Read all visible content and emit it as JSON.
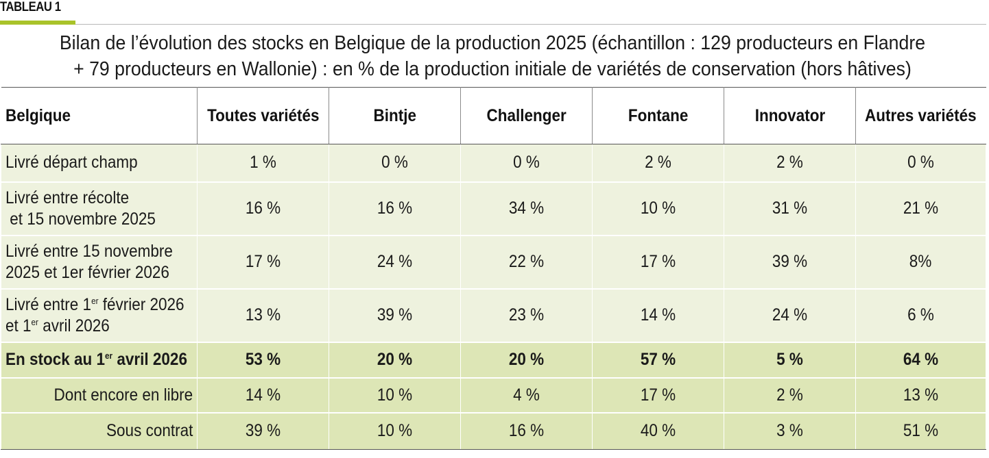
{
  "tag": "TABLEAU 1",
  "title": {
    "line1": "Bilan de l’évolution des stocks en Belgique de la production 2025 (échantillon : 129 producteurs en Flandre",
    "line2": "+ 79 producteurs en Wallonie) : en % de la production initiale de variétés de conservation (hors hâtives)"
  },
  "columns": [
    "Belgique",
    "Toutes variétés",
    "Bintje",
    "Challenger",
    "Fontane",
    "Innovator",
    "Autres variétés"
  ],
  "rows": [
    {
      "label": {
        "l1": "Livré départ champ"
      },
      "values": [
        "1 %",
        "0 %",
        "0 %",
        "2 %",
        "2 %",
        "0 %"
      ]
    },
    {
      "label": {
        "l1": "Livré entre récolte",
        "l2": " et 15 novembre 2025"
      },
      "values": [
        "16 %",
        "16 %",
        "34 %",
        "10 %",
        "31 %",
        "21 %"
      ]
    },
    {
      "label": {
        "l1": "Livré entre 15 novembre",
        "l2": "2025 et 1er février 2026"
      },
      "values": [
        "17 %",
        "24 %",
        "22 %",
        "17 %",
        "39 %",
        "8%"
      ]
    },
    {
      "label": {
        "l1a": "Livré entre 1",
        "l1sup": "er",
        "l1b": " février 2026",
        "l2a": "et 1",
        "l2sup": "er",
        "l2b": " avril 2026"
      },
      "values": [
        "13 %",
        "39 %",
        "23 %",
        "14 %",
        "24 %",
        "6 %"
      ]
    },
    {
      "label": {
        "a": "En stock au 1",
        "sup": "er",
        "b": " avril 2026"
      },
      "values": [
        "53 %",
        "20 %",
        "20 %",
        "57 %",
        "5 %",
        "64 %"
      ]
    },
    {
      "label": {
        "l1": "Dont encore en libre"
      },
      "values": [
        "14 %",
        "10 %",
        "4 %",
        "17 %",
        "2 %",
        "13 %"
      ]
    },
    {
      "label": {
        "l1": "Sous contrat"
      },
      "values": [
        "39 %",
        "10 %",
        "16 %",
        "40 %",
        "3 %",
        "51 %"
      ]
    }
  ]
}
